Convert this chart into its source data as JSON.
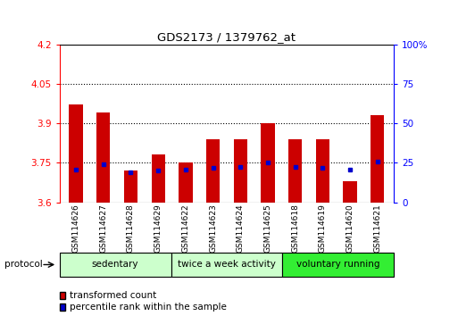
{
  "title": "GDS2173 / 1379762_at",
  "samples": [
    "GSM114626",
    "GSM114627",
    "GSM114628",
    "GSM114629",
    "GSM114622",
    "GSM114623",
    "GSM114624",
    "GSM114625",
    "GSM114618",
    "GSM114619",
    "GSM114620",
    "GSM114621"
  ],
  "red_values": [
    3.97,
    3.94,
    3.72,
    3.78,
    3.75,
    3.84,
    3.84,
    3.9,
    3.84,
    3.84,
    3.68,
    3.93
  ],
  "blue_values": [
    3.725,
    3.745,
    3.715,
    3.72,
    3.725,
    3.73,
    3.735,
    3.75,
    3.735,
    3.73,
    3.725,
    3.755
  ],
  "ymin": 3.6,
  "ymax": 4.2,
  "yticks": [
    3.6,
    3.75,
    3.9,
    4.05,
    4.2
  ],
  "ytick_labels": [
    "3.6",
    "3.75",
    "3.9",
    "4.05",
    "4.2"
  ],
  "right_yticks": [
    0,
    25,
    50,
    75,
    100
  ],
  "right_ytick_labels": [
    "0",
    "25",
    "50",
    "75",
    "100%"
  ],
  "dotted_lines": [
    4.05,
    3.9,
    3.75
  ],
  "groups": [
    {
      "label": "sedentary",
      "start": 0,
      "end": 4,
      "color": "#ccffcc"
    },
    {
      "label": "twice a week activity",
      "start": 4,
      "end": 8,
      "color": "#ccffcc"
    },
    {
      "label": "voluntary running",
      "start": 8,
      "end": 12,
      "color": "#33ee33"
    }
  ],
  "bar_width": 0.5,
  "red_color": "#cc0000",
  "blue_color": "#0000cc",
  "bg_color": "#ffffff",
  "protocol_label": "protocol",
  "legend_red": "transformed count",
  "legend_blue": "percentile rank within the sample"
}
